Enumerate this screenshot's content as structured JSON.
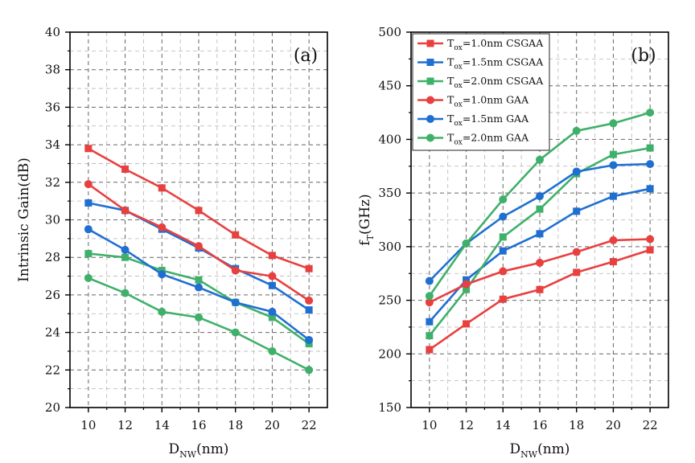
{
  "colors": {
    "red": "#e8403f",
    "blue": "#1f6fd1",
    "green": "#3fb06a"
  },
  "chart_data": [
    {
      "type": "line",
      "panel_label": "(a)",
      "ylabel": "Intrinsic Gain(dB)",
      "xlabel": {
        "main": "D",
        "sub": "NW",
        "tail": "(nm)"
      },
      "x": [
        10,
        12,
        14,
        16,
        18,
        20,
        22
      ],
      "xticks": [
        "10",
        "12",
        "14",
        "16",
        "18",
        "20",
        "22"
      ],
      "ylim": [
        20,
        40
      ],
      "yticks": [
        "20",
        "22",
        "24",
        "26",
        "28",
        "30",
        "32",
        "34",
        "36",
        "38",
        "40"
      ],
      "grid": true,
      "series": [
        {
          "name": "Tox=1.0nm CSGAA",
          "color": "red",
          "marker": "square",
          "values": [
            33.8,
            32.7,
            31.7,
            30.5,
            29.2,
            28.1,
            27.4
          ]
        },
        {
          "name": "Tox=1.5nm CSGAA",
          "color": "blue",
          "marker": "square",
          "values": [
            30.9,
            30.5,
            29.5,
            28.5,
            27.4,
            26.5,
            25.2
          ]
        },
        {
          "name": "Tox=2.0nm CSGAA",
          "color": "green",
          "marker": "square",
          "values": [
            28.2,
            28.0,
            27.3,
            26.8,
            25.6,
            24.8,
            23.4
          ]
        },
        {
          "name": "Tox=1.0nm GAA",
          "color": "red",
          "marker": "circle",
          "values": [
            31.9,
            30.5,
            29.6,
            28.6,
            27.3,
            27.0,
            25.7
          ]
        },
        {
          "name": "Tox=1.5nm GAA",
          "color": "blue",
          "marker": "circle",
          "values": [
            29.5,
            28.4,
            27.1,
            26.4,
            25.6,
            25.1,
            23.6
          ]
        },
        {
          "name": "Tox=2.0nm GAA",
          "color": "green",
          "marker": "circle",
          "values": [
            26.9,
            26.1,
            25.1,
            24.8,
            24.0,
            23.0,
            22.0
          ]
        }
      ]
    },
    {
      "type": "line",
      "panel_label": "(b)",
      "ylabel": {
        "main": "f",
        "sub": "T",
        "tail": "(GHz)"
      },
      "xlabel": {
        "main": "D",
        "sub": "NW",
        "tail": "(nm)"
      },
      "x": [
        10,
        12,
        14,
        16,
        18,
        20,
        22
      ],
      "xticks": [
        "10",
        "12",
        "14",
        "16",
        "18",
        "20",
        "22"
      ],
      "ylim": [
        150,
        500
      ],
      "yticks": [
        "150",
        "200",
        "250",
        "300",
        "350",
        "400",
        "450",
        "500"
      ],
      "grid": true,
      "legend_position": "top-left",
      "legend": [
        {
          "pre": "T",
          "sub": "ox",
          "post": "=1.0nm CSGAA",
          "color": "red",
          "marker": "square"
        },
        {
          "pre": "T",
          "sub": "ox",
          "post": "=1.5nm CSGAA",
          "color": "blue",
          "marker": "square"
        },
        {
          "pre": "T",
          "sub": "ox",
          "post": "=2.0nm CSGAA",
          "color": "green",
          "marker": "square"
        },
        {
          "pre": "T",
          "sub": "ox",
          "post": "=1.0nm GAA",
          "color": "red",
          "marker": "circle"
        },
        {
          "pre": "T",
          "sub": "ox",
          "post": "=1.5nm GAA",
          "color": "blue",
          "marker": "circle"
        },
        {
          "pre": "T",
          "sub": "ox",
          "post": "=2.0nm GAA",
          "color": "green",
          "marker": "circle"
        }
      ],
      "series": [
        {
          "name": "Tox=1.0nm CSGAA",
          "color": "red",
          "marker": "square",
          "values": [
            204,
            228,
            251,
            260,
            276,
            286,
            297
          ]
        },
        {
          "name": "Tox=1.5nm CSGAA",
          "color": "blue",
          "marker": "square",
          "values": [
            230,
            269,
            296,
            312,
            333,
            347,
            354
          ]
        },
        {
          "name": "Tox=2.0nm CSGAA",
          "color": "green",
          "marker": "square",
          "values": [
            217,
            260,
            309,
            335,
            368,
            386,
            392
          ]
        },
        {
          "name": "Tox=1.0nm GAA",
          "color": "red",
          "marker": "circle",
          "values": [
            248,
            265,
            277,
            285,
            295,
            306,
            307
          ]
        },
        {
          "name": "Tox=1.5nm GAA",
          "color": "blue",
          "marker": "circle",
          "values": [
            268,
            303,
            328,
            347,
            370,
            376,
            377
          ]
        },
        {
          "name": "Tox=2.0nm GAA",
          "color": "green",
          "marker": "circle",
          "values": [
            254,
            303,
            344,
            381,
            408,
            415,
            425
          ]
        }
      ]
    }
  ]
}
